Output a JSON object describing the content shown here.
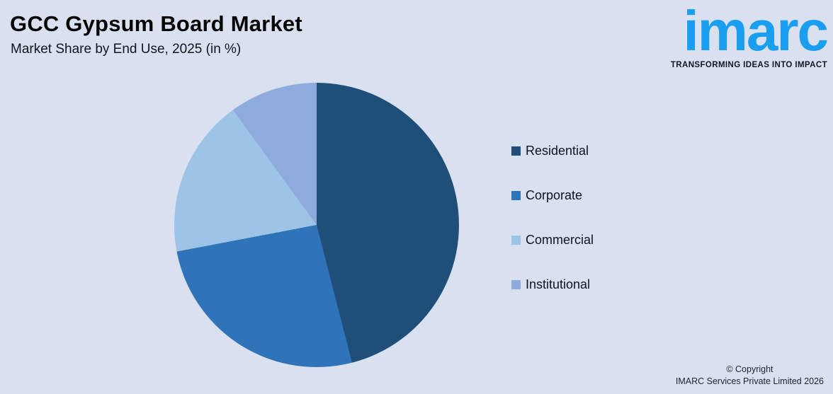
{
  "background_color": "#D9E1F0",
  "header": {
    "title": "GCC Gypsum Board Market",
    "subtitle": "Market Share by End Use, 2025 (in %)"
  },
  "logo": {
    "wordmark": "imarc",
    "tagline": "TRANSFORMING IDEAS INTO IMPACT",
    "brand_color": "#1A9EF0",
    "tagline_color": "#0F1722"
  },
  "chart_data": {
    "type": "pie",
    "title": "GCC Gypsum Board Market",
    "subtitle": "Market Share by End Use, 2025 (in %)",
    "unit": "%",
    "categories": [
      "Residential",
      "Corporate",
      "Commercial",
      "Institutional"
    ],
    "values": [
      46,
      26,
      18,
      10
    ],
    "colors": [
      "#1F4E79",
      "#2F74B8",
      "#9DC3E6",
      "#8FAADC"
    ],
    "start_angle_deg": 0,
    "direction": "clockwise",
    "legend_position": "right",
    "data_labels_visible": false
  },
  "footer": {
    "copyright_line1": "© Copyright",
    "copyright_line2": "IMARC Services Private Limited 2026"
  }
}
